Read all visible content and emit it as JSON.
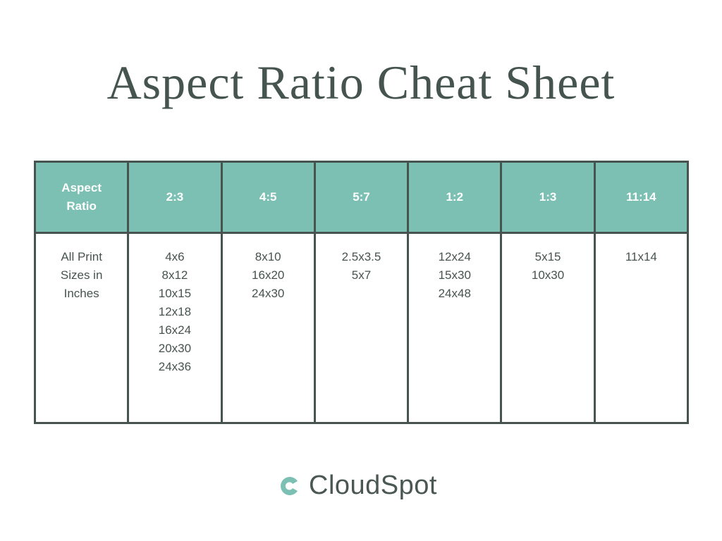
{
  "title": "Aspect Ratio Cheat Sheet",
  "table": {
    "header": [
      "Aspect Ratio",
      "2:3",
      "4:5",
      "5:7",
      "1:2",
      "1:3",
      "11:14"
    ],
    "row_label": "All Print Sizes in Inches",
    "sizes": [
      [
        "4x6",
        "8x12",
        "10x15",
        "12x18",
        "16x24",
        "20x30",
        "24x36"
      ],
      [
        "8x10",
        "16x20",
        "24x30"
      ],
      [
        "2.5x3.5",
        "5x7"
      ],
      [
        "12x24",
        "15x30",
        "24x48"
      ],
      [
        "5x15",
        "10x30"
      ],
      [
        "11x14"
      ]
    ]
  },
  "logo": {
    "text": "CloudSpot",
    "icon": "cloudspot-c-icon"
  },
  "colors": {
    "header_bg": "#7bc0b3",
    "border": "#46534f",
    "text": "#45544f"
  }
}
